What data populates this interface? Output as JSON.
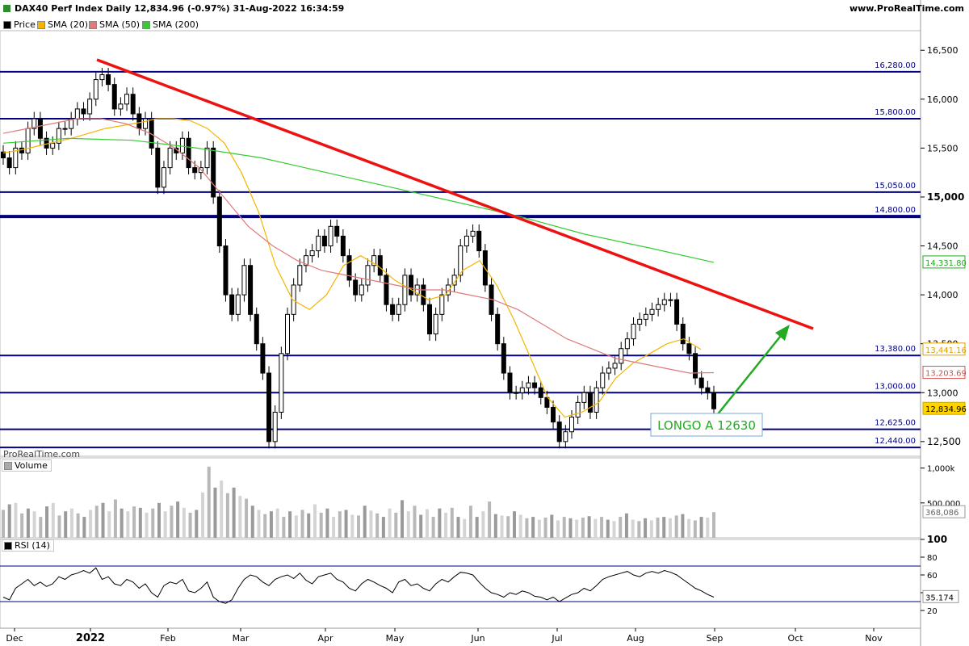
{
  "header": {
    "title": "DAX40 Perf Index Daily 12,834.96 (-0.97%) 31-Aug-2022 16:34:59",
    "site": "www.ProRealTime.com",
    "watermark": "ProRealTime.com"
  },
  "legend": [
    {
      "label": "Price",
      "color": "#000000"
    },
    {
      "label": "SMA (20)",
      "color": "#f2b600"
    },
    {
      "label": "SMA (50)",
      "color": "#e07a7a"
    },
    {
      "label": "SMA (200)",
      "color": "#33cc33"
    }
  ],
  "panels": {
    "volume_label": "Volume",
    "rsi_label": "RSI (14)"
  },
  "chart_data": {
    "type": "candlestick",
    "x_tick_labels": [
      "Dec",
      "2022",
      "Feb",
      "Mar",
      "Apr",
      "May",
      "Jun",
      "Jul",
      "Aug",
      "Sep",
      "Oct",
      "Nov"
    ],
    "y_tick_labels": [
      "16,500",
      "16,000",
      "15,500",
      "15,000",
      "14,500",
      "14,000",
      "13,500",
      "13,000",
      "12,500"
    ],
    "ylim": [
      12350,
      16700
    ],
    "series": [
      {
        "name": "Price",
        "type": "candlestick",
        "color": "#000000",
        "close": [
          15400,
          15300,
          15500,
          15450,
          15700,
          15800,
          15600,
          15500,
          15550,
          15700,
          15700,
          15800,
          15900,
          15850,
          16000,
          16200,
          16250,
          16150,
          15900,
          15950,
          16050,
          15850,
          15700,
          15800,
          15500,
          15100,
          15300,
          15500,
          15450,
          15600,
          15300,
          15250,
          15300,
          15500,
          15000,
          14500,
          14000,
          13800,
          14000,
          14300,
          13800,
          13500,
          13200,
          12500,
          12800,
          13400,
          13800,
          14100,
          14300,
          14400,
          14450,
          14600,
          14500,
          14700,
          14600,
          14400,
          14150,
          14000,
          14100,
          14300,
          14400,
          14200,
          13900,
          13800,
          13900,
          14200,
          14000,
          14100,
          13900,
          13600,
          13800,
          14000,
          14100,
          14200,
          14500,
          14600,
          14650,
          14450,
          14100,
          13800,
          13500,
          13200,
          13000,
          13000,
          13050,
          13100,
          13050,
          12950,
          12850,
          12700,
          12500,
          12600,
          12750,
          12900,
          13000,
          12800,
          13050,
          13200,
          13250,
          13300,
          13450,
          13550,
          13700,
          13750,
          13800,
          13850,
          13900,
          13950,
          13950,
          13700,
          13500,
          13400,
          13150,
          13050,
          13000,
          12835
        ]
      },
      {
        "name": "SMA (20)",
        "type": "line",
        "color": "#f2b600",
        "values": [
          15450,
          15480,
          15520,
          15560,
          15600,
          15650,
          15700,
          15730,
          15760,
          15800,
          15800,
          15780,
          15700,
          15550,
          15250,
          14850,
          14300,
          13950,
          13850,
          14000,
          14300,
          14400,
          14300,
          14150,
          14050,
          13950,
          14000,
          14250,
          14350,
          14100,
          13750,
          13350,
          12950,
          12750,
          12800,
          12900,
          13150,
          13300,
          13400,
          13500,
          13550,
          13441
        ]
      },
      {
        "name": "SMA (50)",
        "type": "line",
        "color": "#e07a7a",
        "values": [
          15650,
          15700,
          15750,
          15800,
          15800,
          15750,
          15650,
          15500,
          15300,
          15000,
          14700,
          14500,
          14350,
          14250,
          14200,
          14150,
          14100,
          14050,
          14050,
          14000,
          13950,
          13850,
          13700,
          13550,
          13450,
          13350,
          13300,
          13250,
          13200,
          13204
        ]
      },
      {
        "name": "SMA (200)",
        "type": "line",
        "color": "#33cc33",
        "values": [
          15550,
          15600,
          15580,
          15500,
          15400,
          15250,
          15100,
          14950,
          14800,
          14620,
          14480,
          14332
        ]
      }
    ],
    "last_values": {
      "price": "12,834.96",
      "sma20": "13,441.16",
      "sma50": "13,203.69",
      "sma200": "14,331.80"
    },
    "horizontal_levels": [
      {
        "value": 16280,
        "label": "16,280.00"
      },
      {
        "value": 15800,
        "label": "15,800.00"
      },
      {
        "value": 15050,
        "label": "15,050.00"
      },
      {
        "value": 14800,
        "label": "14,800.00"
      },
      {
        "value": 13380,
        "label": "13,380.00"
      },
      {
        "value": 13000,
        "label": "13,000.00"
      },
      {
        "value": 12625,
        "label": "12,625.00"
      },
      {
        "value": 12440,
        "label": "12,440.00"
      }
    ],
    "trendline_color": "#ee1111",
    "arrow_color": "#22aa22",
    "annotation": "LONGO A 12630",
    "volume": {
      "ticks": [
        "1,000k",
        "500,000"
      ],
      "last": "368,086",
      "values": [
        400,
        480,
        500,
        350,
        420,
        380,
        300,
        450,
        500,
        320,
        380,
        420,
        350,
        300,
        400,
        460,
        500,
        380,
        550,
        420,
        380,
        450,
        430,
        360,
        420,
        500,
        380,
        460,
        520,
        430,
        360,
        400,
        650,
        1020,
        720,
        820,
        640,
        720,
        600,
        560,
        460,
        400,
        340,
        380,
        420,
        300,
        380,
        320,
        400,
        350,
        480,
        360,
        420,
        300,
        380,
        400,
        330,
        320,
        460,
        390,
        350,
        300,
        420,
        360,
        540,
        380,
        460,
        330,
        410,
        300,
        420,
        360,
        430,
        300,
        270,
        460,
        300,
        380,
        520,
        340,
        320,
        310,
        380,
        330,
        280,
        300,
        260,
        290,
        330,
        250,
        300,
        280,
        260,
        290,
        310,
        270,
        300,
        260,
        240,
        300,
        350,
        260,
        240,
        280,
        250,
        290,
        300,
        280,
        320,
        340,
        270,
        250,
        300,
        290,
        368
      ]
    },
    "rsi": {
      "ticks": [
        "100",
        "80",
        "60",
        "40",
        "20"
      ],
      "last": "35.174",
      "upper": 70,
      "lower": 30,
      "values": [
        35,
        32,
        45,
        50,
        55,
        48,
        52,
        47,
        50,
        58,
        55,
        60,
        62,
        65,
        62,
        68,
        55,
        58,
        50,
        48,
        55,
        52,
        45,
        50,
        40,
        35,
        48,
        52,
        50,
        55,
        42,
        40,
        45,
        52,
        35,
        30,
        28,
        32,
        45,
        55,
        60,
        58,
        52,
        48,
        55,
        58,
        60,
        56,
        62,
        54,
        50,
        58,
        60,
        62,
        55,
        52,
        45,
        42,
        50,
        55,
        52,
        48,
        45,
        40,
        52,
        55,
        48,
        50,
        45,
        42,
        50,
        55,
        52,
        58,
        63,
        62,
        60,
        52,
        45,
        40,
        38,
        35,
        40,
        38,
        42,
        40,
        36,
        35,
        32,
        35,
        30,
        34,
        38,
        40,
        45,
        42,
        48,
        55,
        58,
        60,
        62,
        64,
        60,
        58,
        62,
        64,
        62,
        65,
        63,
        60,
        55,
        50,
        45,
        42,
        38,
        35
      ]
    }
  }
}
